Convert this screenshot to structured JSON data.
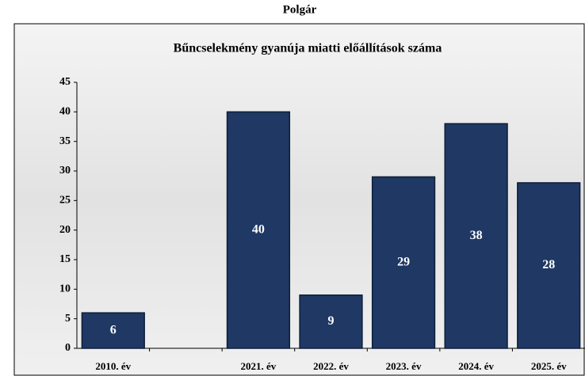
{
  "chart_data": {
    "type": "bar",
    "header": "Polgár",
    "title": "Bűncselekmény gyanúja miatti előállítások száma",
    "categories": [
      "2010. év",
      null,
      "2021. év",
      "2022. év",
      "2023. év",
      "2024. év",
      "2025. év"
    ],
    "values": [
      6,
      null,
      40,
      9,
      29,
      38,
      28
    ],
    "color": "#1f3864",
    "ylim": [
      0,
      45
    ],
    "yticks": [
      0,
      5,
      10,
      15,
      20,
      25,
      30,
      35,
      40,
      45
    ],
    "grid": false
  }
}
